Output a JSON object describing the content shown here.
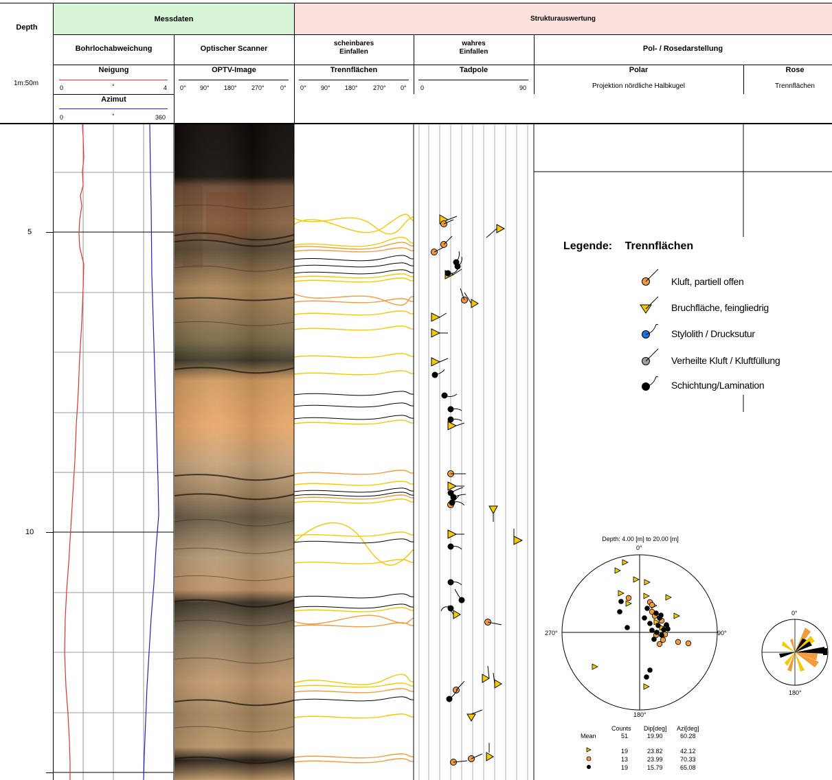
{
  "header": {
    "depth": "Depth",
    "messdaten": "Messdaten",
    "strukturauswertung": "Strukturauswertung",
    "bohrlochabweichung": "Bohrlochabweichung",
    "optischer_scanner": "Optischer Scanner",
    "scheinbares_einfallen": [
      "scheinbares",
      "Einfallen"
    ],
    "wahres_einfallen": [
      "wahres",
      "Einfallen"
    ],
    "pol_rose": "Pol- / Rosedarstellung",
    "scale": "1m:50m",
    "neigung": "Neigung",
    "neigung_scale": [
      "0",
      "°",
      "4"
    ],
    "azimut": "Azimut",
    "azimut_scale": [
      "0",
      "°",
      "360"
    ],
    "optv_image": "OPTV-Image",
    "optv_scale": [
      "0°",
      "90°",
      "180°",
      "270°",
      "0°"
    ],
    "trennflaechen": "Trennflächen",
    "trenn_scale": [
      "0°",
      "90°",
      "180°",
      "270°",
      "0°"
    ],
    "tadpole": "Tadpole",
    "tadpole_scale": [
      "0",
      "90"
    ],
    "polar": "Polar",
    "polar_sub": "Projektion nördliche Halbkugel",
    "rose": "Rose",
    "rose_sub": "Trennflächen"
  },
  "depth_ticks": [
    "5",
    "10"
  ],
  "colors": {
    "messdaten_bg": "#d6f5d6",
    "struktur_bg": "#fbe0dc",
    "neigung_line": "#e03030",
    "azimut_line": "#2020c0",
    "orange": "#f39a3a",
    "yellow": "#f5c800",
    "black": "#000000",
    "blue": "#1e6fe0",
    "gray": "#a0a0a0"
  },
  "legend": {
    "title_prefix": "Legende:",
    "title": "Trennflächen",
    "items": [
      {
        "label": "Kluft, partiell offen",
        "symbol": "orange-circle-icon"
      },
      {
        "label": "Bruchfläche, feingliedrig",
        "symbol": "yellow-triangle-icon"
      },
      {
        "label": "Stylolith / Drucksutur",
        "symbol": "blue-circle-icon"
      },
      {
        "label": "Verheilte Kluft / Kluftfüllung",
        "symbol": "gray-circle-icon"
      },
      {
        "label": "Schichtung/Lamination",
        "symbol": "black-circle-icon"
      }
    ]
  },
  "polar": {
    "title": "Depth: 4.00 [m] to 20.00 [m]",
    "north": "0°",
    "east": "90°",
    "south": "180°",
    "west": "270°"
  },
  "rose": {
    "north": "0°",
    "south": "180°"
  },
  "stats": {
    "headers": [
      "Counts",
      "Dip[deg]",
      "Azi[deg]"
    ],
    "mean_label": "Mean",
    "rows": [
      {
        "label": "Mean",
        "symbol": "",
        "counts": "51",
        "dip": "19.90",
        "azi": "60.28"
      },
      {
        "label": "",
        "symbol": "yellow-triangle-icon",
        "counts": "19",
        "dip": "23.82",
        "azi": "42.12"
      },
      {
        "label": "",
        "symbol": "orange-circle-icon",
        "counts": "13",
        "dip": "23.99",
        "azi": "70.33"
      },
      {
        "label": "",
        "symbol": "black-circle-icon",
        "counts": "19",
        "dip": "15.79",
        "azi": "65.08"
      }
    ]
  }
}
